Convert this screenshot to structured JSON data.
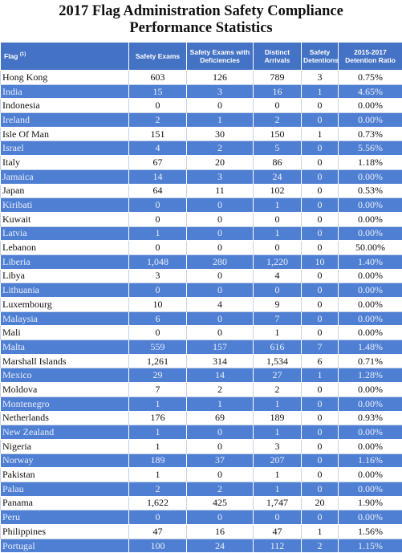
{
  "header": {
    "title": "2017 Flag Administration Safety Compliance Performance Statistics"
  },
  "table": {
    "columns": [
      {
        "label": "Flag",
        "note": "(1)"
      },
      "Safety Exams",
      "Safety Exams with Deficiencies",
      "Distinct Arrivals",
      "Safety Detentions",
      "2015-2017 Detention Ratio"
    ],
    "rows": [
      [
        "Hong Kong",
        "603",
        "126",
        "789",
        "3",
        "0.75%"
      ],
      [
        "India",
        "15",
        "3",
        "16",
        "1",
        "4.65%"
      ],
      [
        "Indonesia",
        "0",
        "0",
        "0",
        "0",
        "0.00%"
      ],
      [
        "Ireland",
        "2",
        "1",
        "2",
        "0",
        "0.00%"
      ],
      [
        "Isle Of Man",
        "151",
        "30",
        "150",
        "1",
        "0.73%"
      ],
      [
        "Israel",
        "4",
        "2",
        "5",
        "0",
        "5.56%"
      ],
      [
        "Italy",
        "67",
        "20",
        "86",
        "0",
        "1.18%"
      ],
      [
        "Jamaica",
        "14",
        "3",
        "24",
        "0",
        "0.00%"
      ],
      [
        "Japan",
        "64",
        "11",
        "102",
        "0",
        "0.53%"
      ],
      [
        "Kiribati",
        "0",
        "0",
        "1",
        "0",
        "0.00%"
      ],
      [
        "Kuwait",
        "0",
        "0",
        "0",
        "0",
        "0.00%"
      ],
      [
        "Latvia",
        "1",
        "0",
        "1",
        "0",
        "0.00%"
      ],
      [
        "Lebanon",
        "0",
        "0",
        "0",
        "0",
        "50.00%"
      ],
      [
        "Liberia",
        "1,048",
        "280",
        "1,220",
        "10",
        "1.40%"
      ],
      [
        "Libya",
        "3",
        "0",
        "4",
        "0",
        "0.00%"
      ],
      [
        "Lithuania",
        "0",
        "0",
        "0",
        "0",
        "0.00%"
      ],
      [
        "Luxembourg",
        "10",
        "4",
        "9",
        "0",
        "0.00%"
      ],
      [
        "Malaysia",
        "6",
        "0",
        "7",
        "0",
        "0.00%"
      ],
      [
        "Mali",
        "0",
        "0",
        "1",
        "0",
        "0.00%"
      ],
      [
        "Malta",
        "559",
        "157",
        "616",
        "7",
        "1.48%"
      ],
      [
        "Marshall Islands",
        "1,261",
        "314",
        "1,534",
        "6",
        "0.71%"
      ],
      [
        "Mexico",
        "29",
        "14",
        "27",
        "1",
        "1.28%"
      ],
      [
        "Moldova",
        "7",
        "2",
        "2",
        "0",
        "0.00%"
      ],
      [
        "Montenegro",
        "1",
        "1",
        "1",
        "0",
        "0.00%"
      ],
      [
        "Netherlands",
        "176",
        "69",
        "189",
        "0",
        "0.93%"
      ],
      [
        "New Zealand",
        "1",
        "0",
        "1",
        "0",
        "0.00%"
      ],
      [
        "Nigeria",
        "1",
        "0",
        "3",
        "0",
        "0.00%"
      ],
      [
        "Norway",
        "189",
        "37",
        "207",
        "0",
        "1.16%"
      ],
      [
        "Pakistan",
        "1",
        "0",
        "1",
        "0",
        "0.00%"
      ],
      [
        "Palau",
        "2",
        "2",
        "1",
        "0",
        "0.00%"
      ],
      [
        "Panama",
        "1,622",
        "425",
        "1,747",
        "20",
        "1.90%"
      ],
      [
        "Peru",
        "0",
        "0",
        "0",
        "0",
        "0.00%"
      ],
      [
        "Philippines",
        "47",
        "16",
        "47",
        "1",
        "1.56%"
      ],
      [
        "Portugal",
        "100",
        "24",
        "112",
        "2",
        "1.15%"
      ]
    ]
  }
}
